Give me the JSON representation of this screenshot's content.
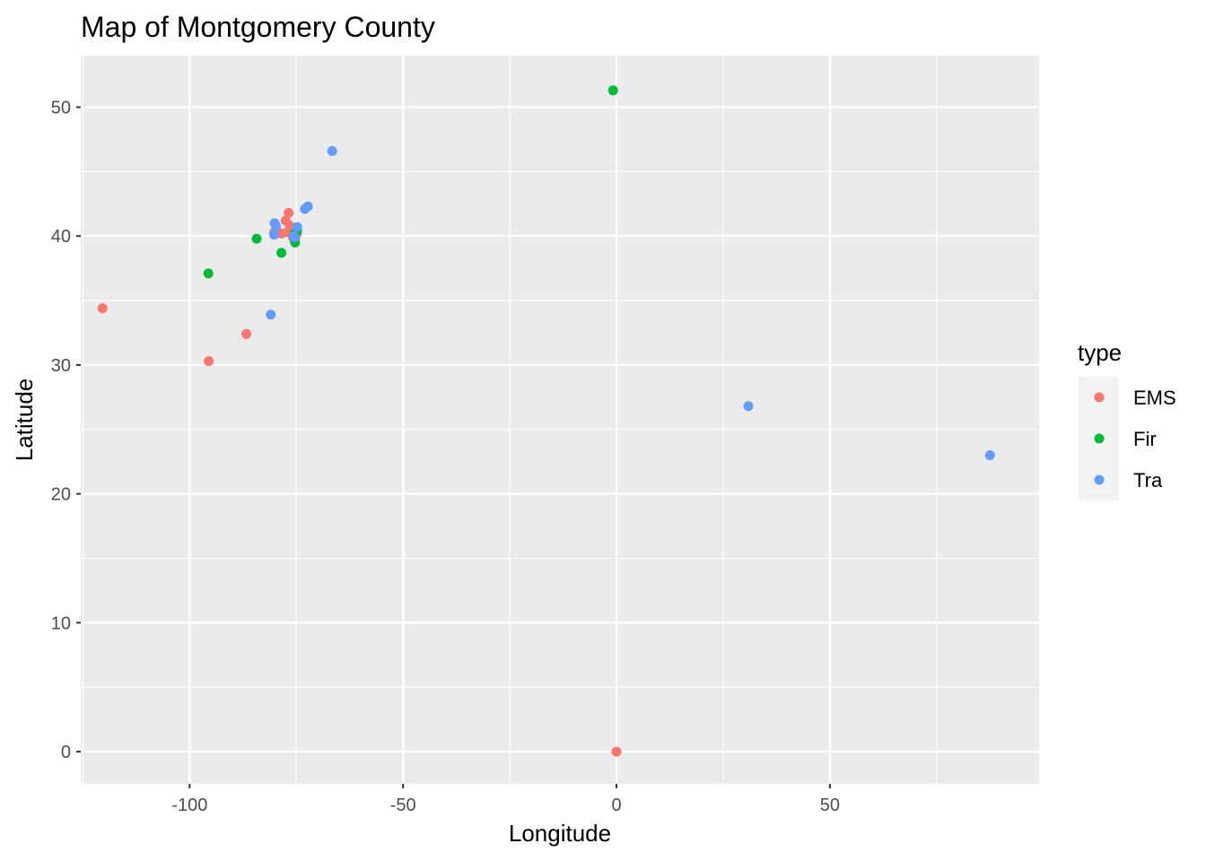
{
  "chart_data": {
    "type": "scatter",
    "title": "Map of Montgomery County",
    "xlabel": "Longitude",
    "ylabel": "Latitude",
    "xlim": [
      -125.5,
      99
    ],
    "ylim": [
      -2.5,
      54
    ],
    "x_ticks": [
      -100,
      -50,
      0,
      50
    ],
    "y_ticks": [
      0,
      10,
      20,
      30,
      40,
      50
    ],
    "x_minor": [
      -125,
      -75,
      -25,
      25,
      75
    ],
    "y_minor": [
      5,
      15,
      25,
      35,
      45
    ],
    "grid": true,
    "legend": {
      "title": "type",
      "position": "right"
    },
    "series": [
      {
        "name": "EMS",
        "color": "#F8766D",
        "points": [
          [
            -120.4,
            34.4
          ],
          [
            -95.5,
            30.3
          ],
          [
            -86.7,
            32.4
          ],
          [
            0,
            0
          ],
          [
            -76.8,
            41.8
          ],
          [
            -77.5,
            41.2
          ],
          [
            -76.5,
            40.8
          ],
          [
            -76.0,
            40.6
          ],
          [
            -75.6,
            40.5
          ],
          [
            -75.3,
            40.3
          ],
          [
            -75.1,
            40.1
          ],
          [
            -74.9,
            40.2
          ],
          [
            -75.5,
            40.2
          ],
          [
            -75.8,
            39.9
          ],
          [
            -75.2,
            39.9
          ],
          [
            -78.5,
            40.2
          ],
          [
            -79.5,
            40.4
          ],
          [
            -80.2,
            40.3
          ],
          [
            -77.0,
            40.3
          ],
          [
            -75.7,
            40.4
          ]
        ]
      },
      {
        "name": "Fir",
        "color": "#00BA38",
        "points": [
          [
            -95.6,
            37.1
          ],
          [
            -84.3,
            39.8
          ],
          [
            -78.5,
            38.7
          ],
          [
            -0.8,
            51.3
          ],
          [
            -75.3,
            39.5
          ],
          [
            -75.4,
            40.2
          ],
          [
            -75.0,
            40.3
          ],
          [
            -74.8,
            40.4
          ],
          [
            -75.6,
            40.0
          ]
        ]
      },
      {
        "name": "Tra",
        "color": "#619CFF",
        "points": [
          [
            -66.6,
            46.6
          ],
          [
            -73.0,
            42.1
          ],
          [
            -72.3,
            42.3
          ],
          [
            -80.1,
            41.0
          ],
          [
            -79.8,
            40.8
          ],
          [
            -80.2,
            40.1
          ],
          [
            -81.0,
            33.9
          ],
          [
            -74.8,
            40.7
          ],
          [
            -75.6,
            40.0
          ],
          [
            -75.4,
            39.9
          ],
          [
            30.9,
            26.8
          ],
          [
            87.5,
            23.0
          ]
        ]
      }
    ]
  }
}
